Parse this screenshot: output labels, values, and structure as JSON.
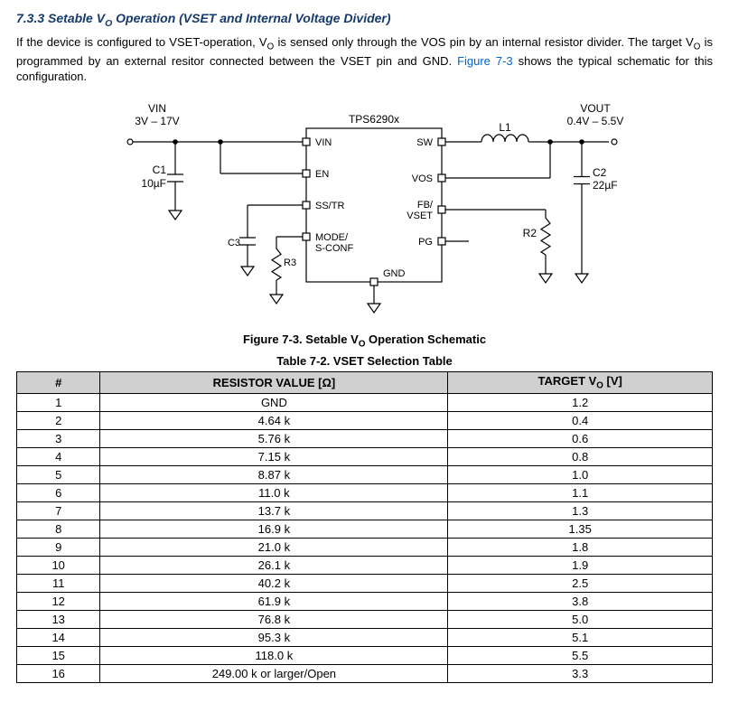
{
  "heading": {
    "number": "7.3.3",
    "title_pre": "Setable V",
    "title_sub": "O",
    "title_post": " Operation (VSET and Internal Voltage Divider)"
  },
  "paragraph": {
    "p1a": "If the device is configured to VSET-operation, V",
    "p1sub": "O",
    "p1b": " is sensed only through the VOS pin by an internal resistor divider. The target V",
    "p1sub2": "O",
    "p1c": " is programmed by an external resitor connected between the VSET pin and GND. ",
    "link": "Figure 7-3",
    "p1d": " shows the typical schematic for this configuration."
  },
  "schematic": {
    "chip_label": "TPS6290x",
    "vin_label": "VIN",
    "vin_range": "3V – 17V",
    "vout_label": "VOUT",
    "vout_range": "0.4V – 5.5V",
    "c1_ref": "C1",
    "c1_val": "10µF",
    "c2_ref": "C2",
    "c2_val": "22µF",
    "c3_ref": "C3",
    "r2_ref": "R2",
    "r3_ref": "R3",
    "l1_ref": "L1",
    "pins": {
      "vin": "VIN",
      "en": "EN",
      "sstr": "SS/TR",
      "mode": "MODE/",
      "sconf": "S-CONF",
      "gnd": "GND",
      "sw": "SW",
      "vos": "VOS",
      "fbvset1": "FB/",
      "fbvset2": "VSET",
      "pg": "PG"
    },
    "stroke": "#000000",
    "stroke_width": 1.2,
    "font_size": 12
  },
  "figure_caption": {
    "pre": "Figure 7-3. Setable V",
    "sub": "O",
    "post": " Operation Schematic"
  },
  "table_caption": "Table 7-2. VSET Selection Table",
  "table": {
    "header": {
      "c1": "#",
      "c2": "RESISTOR VALUE [Ω]",
      "c3_pre": "TARGET V",
      "c3_sub": "O",
      "c3_post": " [V]"
    },
    "rows": [
      {
        "n": "1",
        "r": "GND",
        "v": "1.2"
      },
      {
        "n": "2",
        "r": "4.64 k",
        "v": "0.4"
      },
      {
        "n": "3",
        "r": "5.76 k",
        "v": "0.6"
      },
      {
        "n": "4",
        "r": "7.15 k",
        "v": "0.8"
      },
      {
        "n": "5",
        "r": "8.87 k",
        "v": "1.0"
      },
      {
        "n": "6",
        "r": "11.0 k",
        "v": "1.1"
      },
      {
        "n": "7",
        "r": "13.7 k",
        "v": "1.3"
      },
      {
        "n": "8",
        "r": "16.9 k",
        "v": "1.35"
      },
      {
        "n": "9",
        "r": "21.0 k",
        "v": "1.8"
      },
      {
        "n": "10",
        "r": "26.1 k",
        "v": "1.9"
      },
      {
        "n": "11",
        "r": "40.2 k",
        "v": "2.5"
      },
      {
        "n": "12",
        "r": "61.9 k",
        "v": "3.8"
      },
      {
        "n": "13",
        "r": "76.8 k",
        "v": "5.0"
      },
      {
        "n": "14",
        "r": "95.3 k",
        "v": "5.1"
      },
      {
        "n": "15",
        "r": "118.0 k",
        "v": "5.5"
      },
      {
        "n": "16",
        "r": "249.00 k or larger/Open",
        "v": "3.3"
      }
    ]
  }
}
